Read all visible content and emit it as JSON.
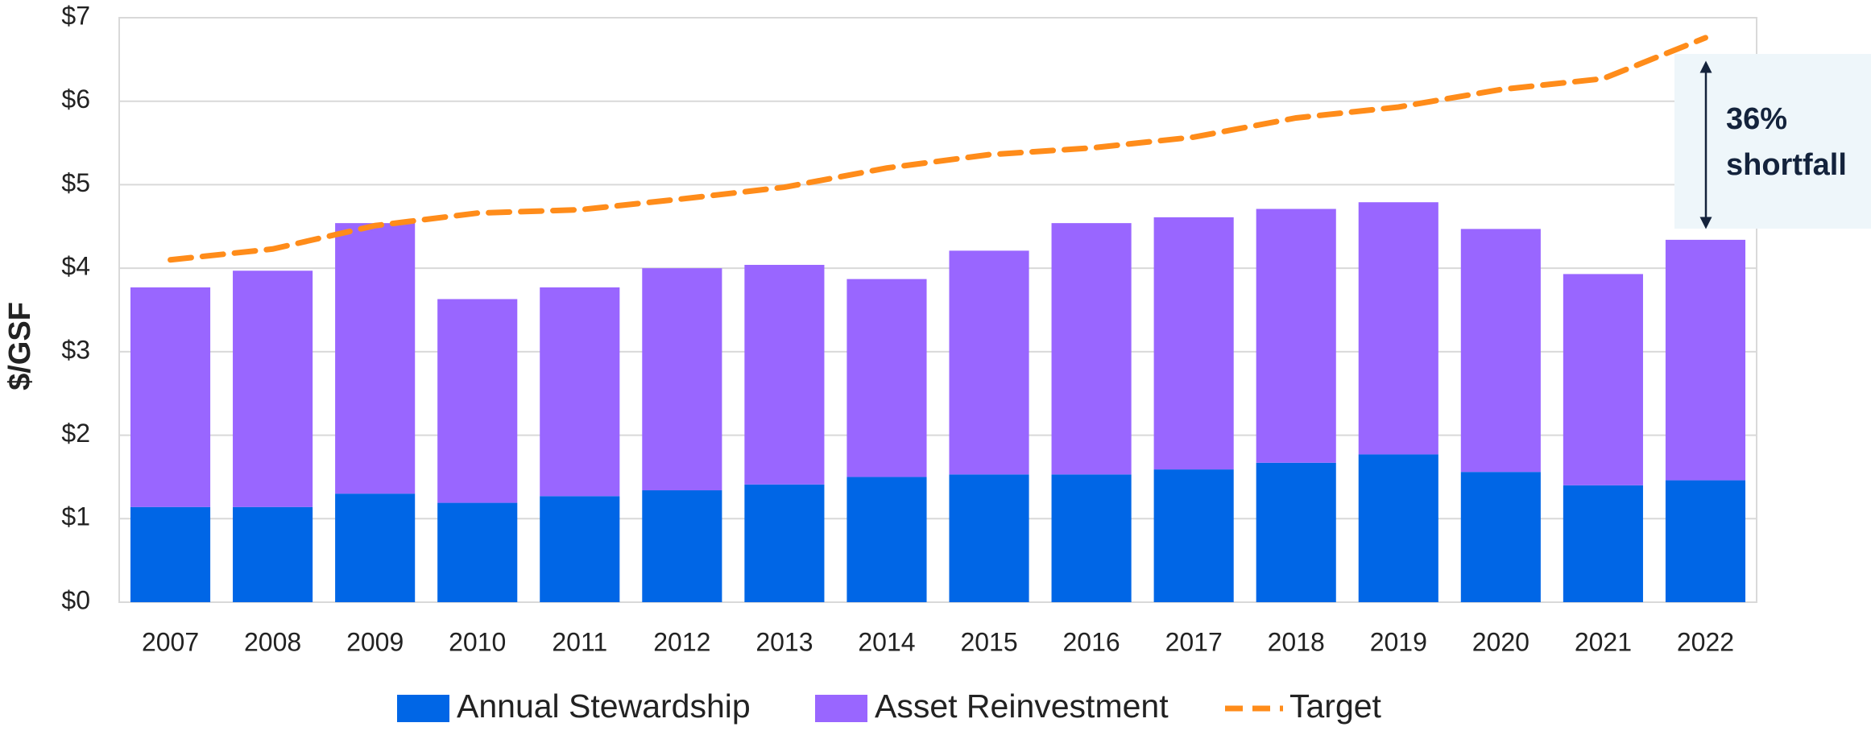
{
  "chart_data": {
    "type": "stacked_bar_line",
    "y_label": "$/GSF",
    "categories": [
      "2007",
      "2008",
      "2009",
      "2010",
      "2011",
      "2012",
      "2013",
      "2014",
      "2015",
      "2016",
      "2017",
      "2018",
      "2019",
      "2020",
      "2021",
      "2022"
    ],
    "series": [
      {
        "name": "Annual Stewardship",
        "color": "#0066e6",
        "kind": "bar",
        "values": [
          1.14,
          1.14,
          1.3,
          1.19,
          1.27,
          1.34,
          1.41,
          1.5,
          1.53,
          1.53,
          1.59,
          1.67,
          1.77,
          1.56,
          1.4,
          1.46
        ]
      },
      {
        "name": "Asset Reinvestment",
        "color": "#9966ff",
        "kind": "bar",
        "values": [
          2.63,
          2.83,
          3.24,
          2.44,
          2.5,
          2.66,
          2.63,
          2.37,
          2.68,
          3.01,
          3.02,
          3.04,
          3.02,
          2.91,
          2.53,
          2.88
        ]
      },
      {
        "name": "Target",
        "color": "#ff8c1a",
        "kind": "line",
        "dashed": true,
        "values": [
          4.1,
          4.23,
          4.51,
          4.66,
          4.7,
          4.83,
          4.97,
          5.2,
          5.36,
          5.44,
          5.57,
          5.8,
          5.93,
          6.14,
          6.27,
          6.76
        ]
      }
    ],
    "ylim": [
      0,
      7
    ],
    "yticks": [
      {
        "value": 0,
        "label": "$0"
      },
      {
        "value": 1,
        "label": "$1"
      },
      {
        "value": 2,
        "label": "$2"
      },
      {
        "value": 3,
        "label": "$3"
      },
      {
        "value": 4,
        "label": "$4"
      },
      {
        "value": 5,
        "label": "$5"
      },
      {
        "value": 6,
        "label": "$6"
      },
      {
        "value": 7,
        "label": "$7"
      }
    ],
    "grid": true,
    "legend": "bottom",
    "annotation": [
      "36%",
      "shortfall"
    ]
  }
}
